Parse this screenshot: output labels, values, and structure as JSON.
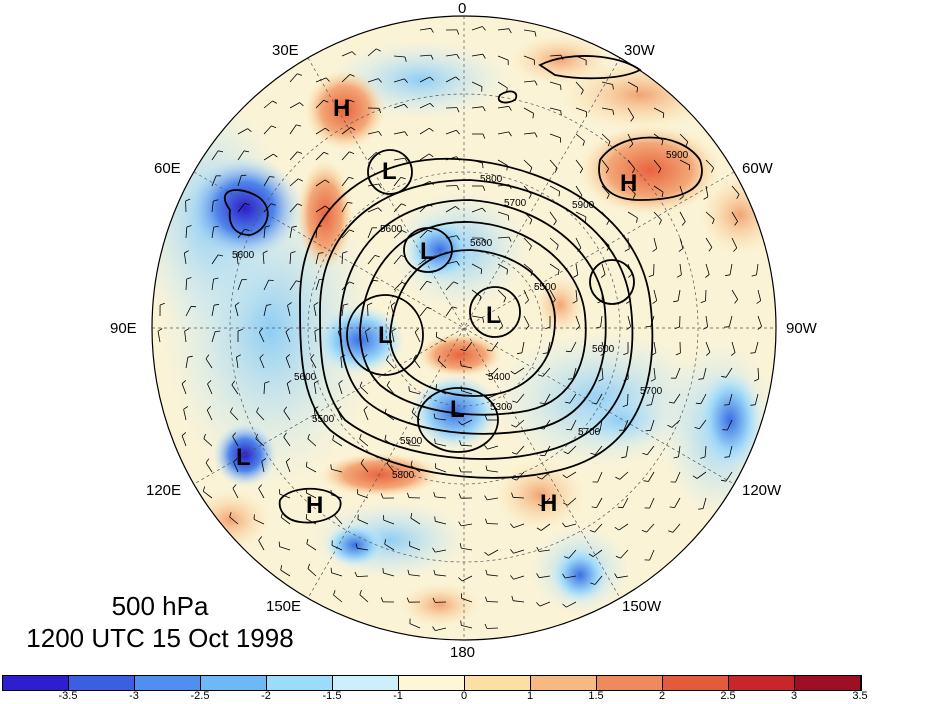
{
  "title": "500 hPa",
  "subtitle": "1200 UTC 15 Oct 1998",
  "longitude_labels": [
    "0",
    "30W",
    "60W",
    "90W",
    "120W",
    "150W",
    "180",
    "150E",
    "120E",
    "90E",
    "60E",
    "30E"
  ],
  "pressure_centers": [
    {
      "label": "H"
    },
    {
      "label": "H"
    },
    {
      "label": "H"
    },
    {
      "label": "H"
    },
    {
      "label": "L"
    },
    {
      "label": "L"
    },
    {
      "label": "L"
    },
    {
      "label": "L"
    },
    {
      "label": "L"
    },
    {
      "label": "L"
    }
  ],
  "contour_labels": [
    "5800",
    "5700",
    "5900",
    "5600",
    "5600",
    "5500",
    "5600",
    "5600",
    "5400",
    "5300",
    "5500",
    "5700",
    "5600",
    "5500",
    "5800",
    "5700",
    "5900"
  ],
  "colorbar": {
    "colors": [
      "#2d1fd0",
      "#3a5fe0",
      "#4e8ff0",
      "#6fb8f6",
      "#9bdcfa",
      "#cdeefb",
      "#fdf7d8",
      "#fbe0a5",
      "#f7b984",
      "#ef8a5c",
      "#e35a3c",
      "#c8262a",
      "#9c0f24"
    ],
    "tick_labels": [
      "-3.5",
      "-3",
      "-2.5",
      "-2",
      "-1.5",
      "-1",
      "0",
      "1",
      "1.5",
      "2",
      "2.5",
      "3",
      "3.5"
    ]
  }
}
